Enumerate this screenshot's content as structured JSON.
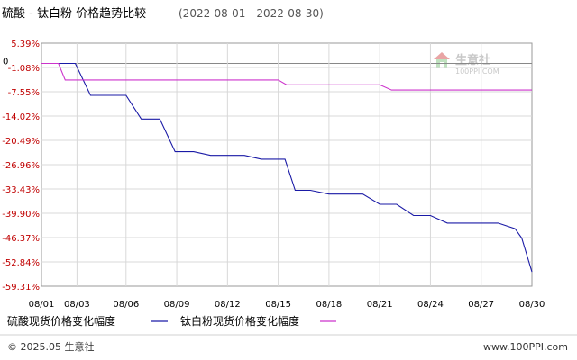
{
  "header": {
    "title": "硫酸 - 钛白粉 价格趋势比较",
    "date_range": "(2022-08-01 - 2022-08-30)"
  },
  "watermark": {
    "name": "生意社",
    "url": "100PPI.COM"
  },
  "footer": {
    "copyright": "© 2025.05 生意社",
    "site": "www.100PPI.com"
  },
  "colors": {
    "series1": "#1a1aa6",
    "series2": "#cc33cc",
    "tick_label": "#c00000",
    "grid": "#d8d8d8",
    "axis": "#888888"
  },
  "chart_data": {
    "type": "line",
    "ylim": [
      -59.31,
      5.39
    ],
    "y_ticks": [
      "5.39%",
      "-1.08%",
      "-7.55%",
      "-14.02%",
      "-20.49%",
      "-26.96%",
      "-33.43%",
      "-39.90%",
      "-46.37%",
      "-52.84%",
      "-59.31%"
    ],
    "y_tick_values": [
      5.39,
      -1.08,
      -7.55,
      -14.02,
      -20.49,
      -26.96,
      -33.43,
      -39.9,
      -46.37,
      -52.84,
      -59.31
    ],
    "zero_label": "0",
    "x_range": [
      1,
      30
    ],
    "x_ticks": [
      "08/01",
      "08/03",
      "08/06",
      "08/09",
      "08/12",
      "08/15",
      "08/18",
      "08/21",
      "08/24",
      "08/27",
      "08/30"
    ],
    "x_tick_days": [
      1,
      3.1,
      6,
      9,
      12,
      15,
      18,
      21,
      24,
      27,
      30
    ],
    "grid": true,
    "legend_position": "bottom",
    "series": [
      {
        "name": "硫酸现货价格变化幅度",
        "color": "#1a1aa6",
        "x": [
          1,
          2,
          3,
          3.9,
          5,
          6,
          6.9,
          8,
          8.9,
          9.3,
          10,
          11,
          12,
          13,
          14,
          14.9,
          15.4,
          16,
          16.5,
          16.9,
          18,
          19,
          20,
          21,
          22,
          23,
          24,
          25,
          26,
          27,
          28,
          29,
          29.4,
          30
        ],
        "y": [
          0,
          0,
          0,
          -8.5,
          -8.5,
          -8.5,
          -14.8,
          -14.8,
          -23.5,
          -23.5,
          -23.5,
          -24.5,
          -24.5,
          -24.5,
          -25.5,
          -25.5,
          -25.5,
          -33.8,
          -33.8,
          -33.8,
          -34.8,
          -34.8,
          -34.8,
          -37.5,
          -37.5,
          -40.5,
          -40.5,
          -42.5,
          -42.5,
          -42.5,
          -42.5,
          -44.0,
          -46.5,
          -55.5
        ]
      },
      {
        "name": "钛白粉现货价格变化幅度",
        "color": "#cc33cc",
        "x": [
          1,
          2,
          2.4,
          3,
          6,
          9,
          12,
          15,
          15.5,
          16,
          18,
          21,
          21.7,
          22,
          24,
          27,
          30
        ],
        "y": [
          0,
          0,
          -4.4,
          -4.4,
          -4.4,
          -4.4,
          -4.4,
          -4.4,
          -5.7,
          -5.7,
          -5.7,
          -5.7,
          -7.1,
          -7.1,
          -7.1,
          -7.1,
          -7.1
        ]
      }
    ]
  }
}
